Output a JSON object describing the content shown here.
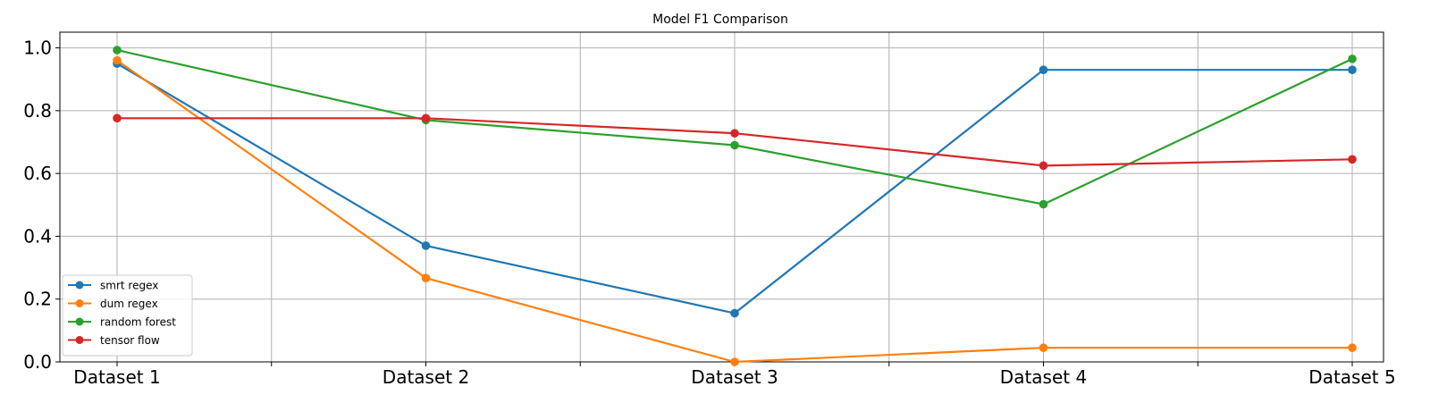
{
  "chart_data": {
    "type": "line",
    "title": "Model F1 Comparison",
    "xlabel": "",
    "ylabel": "",
    "categories": [
      "Dataset 1",
      "Dataset 2",
      "Dataset 3",
      "Dataset 4",
      "Dataset 5"
    ],
    "ylim": [
      0,
      1.05
    ],
    "yticks": [
      "0.0",
      "0.2",
      "0.4",
      "0.6",
      "0.8",
      "1.0"
    ],
    "grid": true,
    "legend_position": "lower-left",
    "series": [
      {
        "name": "smrt regex",
        "color": "#1f77b4",
        "values": [
          0.95,
          0.37,
          0.155,
          0.93,
          0.93
        ]
      },
      {
        "name": "dum regex",
        "color": "#ff7f0e",
        "values": [
          0.96,
          0.267,
          0.0,
          0.045,
          0.045
        ]
      },
      {
        "name": "random forest",
        "color": "#2ca02c",
        "values": [
          0.993,
          0.77,
          0.69,
          0.502,
          0.965
        ]
      },
      {
        "name": "tensor flow",
        "color": "#d62728",
        "values": [
          0.776,
          0.776,
          0.728,
          0.625,
          0.645
        ]
      }
    ]
  }
}
